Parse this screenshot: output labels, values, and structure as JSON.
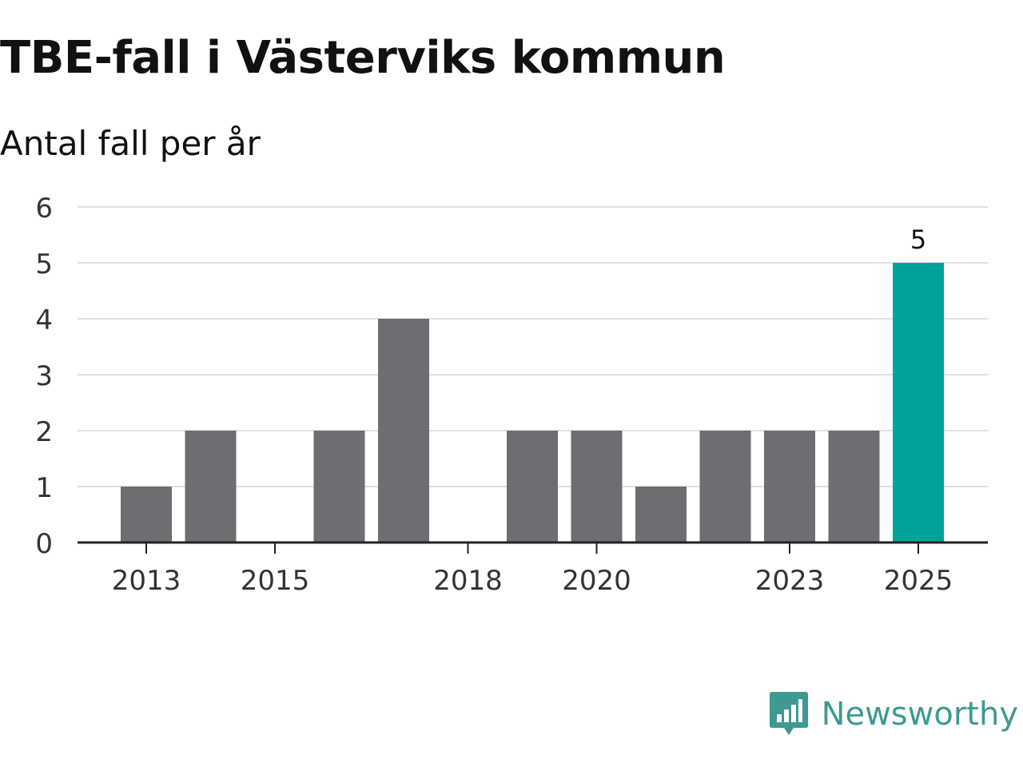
{
  "header": {
    "title": "TBE-fall i Västerviks kommun",
    "subtitle": "Antal fall per år"
  },
  "brand": {
    "name": "Newsworthy",
    "color": "#3e9a91",
    "icon": "newsworthy-logo-icon"
  },
  "colors": {
    "bar": "#6e6d72",
    "highlight": "#00a39a",
    "grid": "#e0e0e0",
    "axis": "#222222",
    "tick_text": "#333333"
  },
  "chart_data": {
    "type": "bar",
    "title": "TBE-fall i Västerviks kommun",
    "subtitle": "Antal fall per år",
    "categories": [
      "2013",
      "2014",
      "2015",
      "2016",
      "2017",
      "2018",
      "2019",
      "2020",
      "2021",
      "2022",
      "2023",
      "2024",
      "2025"
    ],
    "x_tick_labels": [
      "2013",
      "2015",
      "2018",
      "2020",
      "2023",
      "2025"
    ],
    "values": [
      1,
      2,
      0,
      2,
      4,
      0,
      2,
      2,
      1,
      2,
      2,
      2,
      5
    ],
    "highlight_category": "2025",
    "data_labels": [
      {
        "category": "2025",
        "text": "5"
      }
    ],
    "y_ticks": [
      "0",
      "1",
      "2",
      "3",
      "4",
      "5",
      "6"
    ],
    "ylim": [
      0,
      6
    ],
    "xlabel": "",
    "ylabel": "",
    "grid": true,
    "legend": "none"
  }
}
